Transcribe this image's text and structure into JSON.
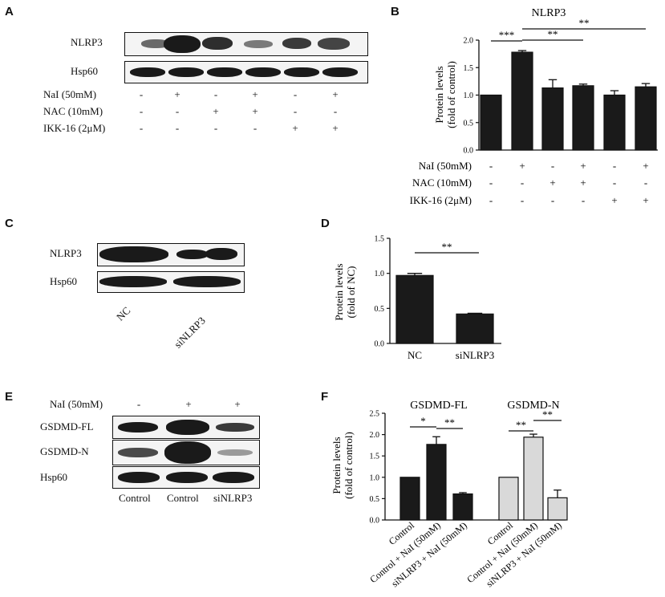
{
  "panels": [
    "A",
    "B",
    "C",
    "D",
    "E",
    "F"
  ],
  "panel_a": {
    "blot_labels": [
      "NLRP3",
      "Hsp60"
    ],
    "conditions": [
      {
        "label": "NaI (50mM)",
        "signs": [
          "-",
          "+",
          "-",
          "+",
          "-",
          "+"
        ]
      },
      {
        "label": "NAC (10mM)",
        "signs": [
          "-",
          "-",
          "+",
          "+",
          "-",
          "-"
        ]
      },
      {
        "label": "IKK-16 (2μM)",
        "signs": [
          "-",
          "-",
          "-",
          "-",
          "+",
          "+"
        ]
      }
    ]
  },
  "panel_c": {
    "blot_labels": [
      "NLRP3",
      "Hsp60"
    ],
    "lane_labels": [
      "NC",
      "siNLRP3"
    ]
  },
  "panel_e": {
    "treatment_label": "NaI (50mM)",
    "treatment_signs": [
      "-",
      "+",
      "+"
    ],
    "blot_labels": [
      "GSDMD-FL",
      "GSDMD-N",
      "Hsp60"
    ],
    "lane_labels": [
      "Control",
      "Control",
      "siNLRP3"
    ]
  },
  "chart_data": [
    {
      "type": "bar",
      "title": "NLRP3",
      "ylabel": "Protein levels\n(fold of control)",
      "ylim": [
        0,
        2.0
      ],
      "yticks": [
        "0.0",
        "0.5",
        "1.0",
        "1.5",
        "2.0"
      ],
      "values": [
        1.0,
        1.78,
        1.13,
        1.17,
        1.0,
        1.15
      ],
      "errors": [
        0,
        0.03,
        0.15,
        0.03,
        0.08,
        0.06
      ],
      "bar_color": "#1a1a1a",
      "significance": [
        "***",
        "**",
        "**"
      ],
      "conditions": [
        {
          "label": "NaI (50mM)",
          "signs": [
            "-",
            "+",
            "-",
            "+",
            "-",
            "+"
          ]
        },
        {
          "label": "NAC (10mM)",
          "signs": [
            "-",
            "-",
            "+",
            "+",
            "-",
            "-"
          ]
        },
        {
          "label": "IKK-16 (2μM)",
          "signs": [
            "-",
            "-",
            "-",
            "-",
            "+",
            "+"
          ]
        }
      ]
    },
    {
      "type": "bar",
      "ylabel": "Protein levels\n(fold of NC)",
      "ylim": [
        0,
        1.5
      ],
      "yticks": [
        "0.0",
        "0.5",
        "1.0",
        "1.5"
      ],
      "categories": [
        "NC",
        "siNLRP3"
      ],
      "values": [
        0.97,
        0.42
      ],
      "errors": [
        0.03,
        0.01
      ],
      "bar_color": "#1a1a1a",
      "significance": [
        "**"
      ]
    },
    {
      "type": "bar",
      "ylabel": "Protein levels\n(fold of control)",
      "ylim": [
        0,
        2.5
      ],
      "yticks": [
        "0.0",
        "0.5",
        "1.0",
        "1.5",
        "2.0",
        "2.5"
      ],
      "groups": [
        {
          "title": "GSDMD-FL",
          "color": "#1a1a1a",
          "categories": [
            "Control",
            "Control + NaI (50mM)",
            "siNLRP3 + NaI (50mM)"
          ],
          "values": [
            1.0,
            1.77,
            0.61
          ],
          "errors": [
            0,
            0.18,
            0.03
          ],
          "significance": [
            "*",
            "**"
          ]
        },
        {
          "title": "GSDMD-N",
          "color": "#d9d9d9",
          "categories": [
            "Control",
            "Control + NaI (50mM)",
            "siNLRP3 + NaI (50mM)"
          ],
          "values": [
            1.0,
            1.94,
            0.52
          ],
          "errors": [
            0,
            0.07,
            0.18
          ],
          "significance": [
            "**",
            "**"
          ]
        }
      ]
    }
  ]
}
